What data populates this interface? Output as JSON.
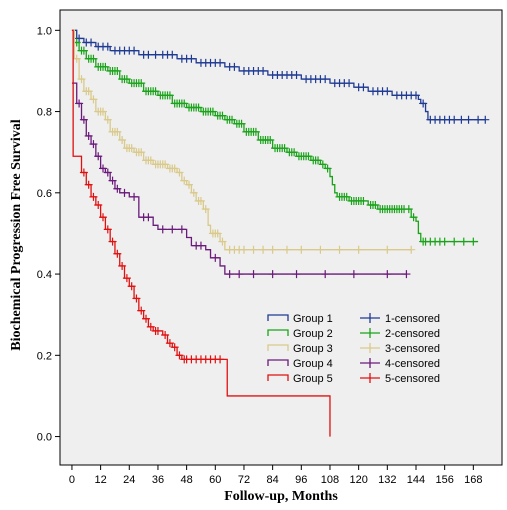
{
  "chart_data": {
    "type": "line",
    "subtype": "kaplan-meier-step",
    "xlabel": "Follow-up, Months",
    "ylabel": "Biochemical Progression Free Survival",
    "xlim": [
      -5,
      180
    ],
    "ylim": [
      -0.07,
      1.05
    ],
    "x_ticks": [
      0,
      12,
      24,
      36,
      48,
      60,
      72,
      84,
      96,
      108,
      120,
      132,
      144,
      156,
      168
    ],
    "x_tick_labels": [
      "0",
      "12",
      "24",
      "36",
      "48",
      "60",
      "72",
      "84",
      "96",
      "108",
      "120",
      "132",
      "144",
      "156",
      "168"
    ],
    "y_ticks": [
      0.0,
      0.2,
      0.4,
      0.6,
      0.8,
      1.0
    ],
    "y_tick_labels": [
      "0.0",
      "0.2",
      "0.4",
      "0.6",
      "0.8",
      "1.0"
    ],
    "grid": false,
    "plot_background": "#efefef",
    "legend": {
      "placement": "bottom-right",
      "entries": [
        {
          "label": "Group 1",
          "color": "#1f3a93",
          "marker": "line"
        },
        {
          "label": "1-censored",
          "color": "#1f3a93",
          "marker": "cross"
        },
        {
          "label": "Group 2",
          "color": "#1aa31a",
          "marker": "line"
        },
        {
          "label": "2-censored",
          "color": "#1aa31a",
          "marker": "cross"
        },
        {
          "label": "Group 3",
          "color": "#d9c98a",
          "marker": "line"
        },
        {
          "label": "3-censored",
          "color": "#d9c98a",
          "marker": "cross"
        },
        {
          "label": "Group 4",
          "color": "#6a1a7a",
          "marker": "line"
        },
        {
          "label": "4-censored",
          "color": "#6a1a7a",
          "marker": "cross"
        },
        {
          "label": "Group 5",
          "color": "#e01010",
          "marker": "line"
        },
        {
          "label": "5-censored",
          "color": "#e01010",
          "marker": "cross"
        }
      ]
    },
    "series": [
      {
        "name": "Group 1",
        "color": "#1f3a93",
        "steps": [
          [
            0,
            1.0
          ],
          [
            2,
            0.98
          ],
          [
            5,
            0.97
          ],
          [
            10,
            0.96
          ],
          [
            16,
            0.95
          ],
          [
            28,
            0.94
          ],
          [
            44,
            0.93
          ],
          [
            52,
            0.92
          ],
          [
            64,
            0.91
          ],
          [
            70,
            0.9
          ],
          [
            82,
            0.89
          ],
          [
            96,
            0.88
          ],
          [
            108,
            0.87
          ],
          [
            118,
            0.86
          ],
          [
            124,
            0.85
          ],
          [
            134,
            0.84
          ],
          [
            145,
            0.83
          ],
          [
            146,
            0.82
          ],
          [
            148,
            0.8
          ],
          [
            149,
            0.78
          ],
          [
            173,
            0.78
          ]
        ],
        "censored_x": [
          3,
          6,
          8,
          11,
          13,
          15,
          18,
          20,
          22,
          24,
          26,
          30,
          32,
          35,
          38,
          40,
          42,
          46,
          48,
          50,
          54,
          56,
          58,
          60,
          62,
          66,
          68,
          72,
          74,
          76,
          78,
          80,
          84,
          86,
          88,
          90,
          92,
          94,
          98,
          100,
          102,
          104,
          106,
          110,
          112,
          114,
          116,
          120,
          122,
          126,
          128,
          130,
          132,
          136,
          138,
          140,
          142,
          144,
          147,
          150,
          152,
          154,
          156,
          158,
          160,
          163,
          166,
          170,
          173
        ]
      },
      {
        "name": "Group 2",
        "color": "#1aa31a",
        "steps": [
          [
            0,
            1.0
          ],
          [
            1,
            0.97
          ],
          [
            3,
            0.95
          ],
          [
            6,
            0.93
          ],
          [
            10,
            0.91
          ],
          [
            15,
            0.9
          ],
          [
            20,
            0.88
          ],
          [
            24,
            0.87
          ],
          [
            30,
            0.85
          ],
          [
            36,
            0.84
          ],
          [
            42,
            0.82
          ],
          [
            48,
            0.81
          ],
          [
            54,
            0.8
          ],
          [
            60,
            0.79
          ],
          [
            64,
            0.78
          ],
          [
            68,
            0.77
          ],
          [
            72,
            0.75
          ],
          [
            78,
            0.73
          ],
          [
            84,
            0.71
          ],
          [
            90,
            0.7
          ],
          [
            94,
            0.69
          ],
          [
            100,
            0.68
          ],
          [
            104,
            0.67
          ],
          [
            106,
            0.66
          ],
          [
            108,
            0.64
          ],
          [
            109,
            0.62
          ],
          [
            110,
            0.6
          ],
          [
            111,
            0.59
          ],
          [
            116,
            0.58
          ],
          [
            124,
            0.57
          ],
          [
            128,
            0.56
          ],
          [
            140,
            0.56
          ],
          [
            142,
            0.54
          ],
          [
            144,
            0.53
          ],
          [
            145,
            0.5
          ],
          [
            146,
            0.48
          ],
          [
            170,
            0.48
          ]
        ],
        "censored_x": [
          2,
          4,
          5,
          7,
          8,
          9,
          11,
          12,
          13,
          14,
          16,
          17,
          18,
          19,
          21,
          22,
          23,
          25,
          26,
          27,
          28,
          29,
          31,
          32,
          33,
          34,
          35,
          37,
          38,
          39,
          40,
          41,
          43,
          44,
          45,
          46,
          47,
          49,
          50,
          51,
          52,
          53,
          55,
          56,
          57,
          58,
          59,
          61,
          62,
          63,
          65,
          66,
          67,
          69,
          70,
          71,
          73,
          74,
          75,
          76,
          77,
          79,
          80,
          81,
          82,
          83,
          85,
          86,
          87,
          88,
          89,
          91,
          92,
          93,
          95,
          96,
          97,
          98,
          99,
          101,
          102,
          103,
          105,
          107,
          112,
          113,
          114,
          115,
          117,
          118,
          119,
          120,
          121,
          122,
          125,
          126,
          127,
          129,
          130,
          131,
          132,
          133,
          134,
          135,
          136,
          137,
          138,
          139,
          141,
          143,
          147,
          148,
          150,
          152,
          154,
          156,
          160,
          164,
          168
        ]
      },
      {
        "name": "Group 3",
        "color": "#d9c98a",
        "steps": [
          [
            0,
            1.0
          ],
          [
            1,
            0.93
          ],
          [
            3,
            0.88
          ],
          [
            5,
            0.85
          ],
          [
            8,
            0.83
          ],
          [
            10,
            0.8
          ],
          [
            14,
            0.78
          ],
          [
            16,
            0.75
          ],
          [
            20,
            0.73
          ],
          [
            22,
            0.71
          ],
          [
            26,
            0.7
          ],
          [
            30,
            0.68
          ],
          [
            34,
            0.67
          ],
          [
            40,
            0.66
          ],
          [
            44,
            0.65
          ],
          [
            46,
            0.63
          ],
          [
            48,
            0.62
          ],
          [
            50,
            0.6
          ],
          [
            52,
            0.58
          ],
          [
            55,
            0.56
          ],
          [
            57,
            0.52
          ],
          [
            58,
            0.5
          ],
          [
            62,
            0.48
          ],
          [
            64,
            0.46
          ],
          [
            142,
            0.46
          ]
        ],
        "censored_x": [
          2,
          4,
          6,
          7,
          9,
          11,
          12,
          13,
          15,
          17,
          18,
          19,
          21,
          23,
          24,
          25,
          27,
          28,
          29,
          31,
          32,
          33,
          35,
          36,
          37,
          38,
          39,
          41,
          42,
          43,
          45,
          47,
          49,
          51,
          53,
          54,
          56,
          59,
          60,
          61,
          63,
          66,
          68,
          70,
          72,
          76,
          80,
          84,
          90,
          96,
          104,
          112,
          120,
          132,
          142
        ]
      },
      {
        "name": "Group 4",
        "color": "#6a1a7a",
        "steps": [
          [
            0,
            0.87
          ],
          [
            2,
            0.82
          ],
          [
            4,
            0.78
          ],
          [
            6,
            0.74
          ],
          [
            8,
            0.72
          ],
          [
            10,
            0.69
          ],
          [
            12,
            0.66
          ],
          [
            14,
            0.65
          ],
          [
            16,
            0.63
          ],
          [
            18,
            0.61
          ],
          [
            20,
            0.6
          ],
          [
            24,
            0.59
          ],
          [
            28,
            0.54
          ],
          [
            34,
            0.52
          ],
          [
            36,
            0.51
          ],
          [
            48,
            0.49
          ],
          [
            50,
            0.47
          ],
          [
            56,
            0.46
          ],
          [
            58,
            0.44
          ],
          [
            62,
            0.42
          ],
          [
            64,
            0.4
          ],
          [
            140,
            0.4
          ]
        ],
        "censored_x": [
          3,
          5,
          7,
          9,
          11,
          13,
          15,
          17,
          19,
          22,
          26,
          30,
          32,
          38,
          42,
          46,
          52,
          54,
          60,
          66,
          70,
          76,
          84,
          94,
          106,
          118,
          132,
          140
        ]
      },
      {
        "name": "Group 5",
        "color": "#e01010",
        "steps": [
          [
            0,
            1.0
          ],
          [
            0.5,
            0.69
          ],
          [
            4,
            0.65
          ],
          [
            6,
            0.62
          ],
          [
            8,
            0.59
          ],
          [
            10,
            0.57
          ],
          [
            12,
            0.54
          ],
          [
            14,
            0.51
          ],
          [
            16,
            0.48
          ],
          [
            18,
            0.45
          ],
          [
            20,
            0.42
          ],
          [
            22,
            0.39
          ],
          [
            24,
            0.37
          ],
          [
            26,
            0.34
          ],
          [
            28,
            0.31
          ],
          [
            30,
            0.29
          ],
          [
            32,
            0.27
          ],
          [
            34,
            0.26
          ],
          [
            38,
            0.25
          ],
          [
            40,
            0.23
          ],
          [
            42,
            0.22
          ],
          [
            44,
            0.2
          ],
          [
            46,
            0.19
          ],
          [
            64,
            0.19
          ],
          [
            65,
            0.1
          ],
          [
            108,
            0.1
          ],
          [
            108,
            0.0
          ]
        ],
        "censored_x": [
          5,
          7,
          9,
          11,
          13,
          15,
          17,
          19,
          21,
          23,
          25,
          27,
          29,
          31,
          33,
          35,
          36,
          39,
          41,
          43,
          45,
          47,
          48,
          50,
          52,
          54,
          56,
          58,
          60,
          62
        ]
      }
    ]
  }
}
